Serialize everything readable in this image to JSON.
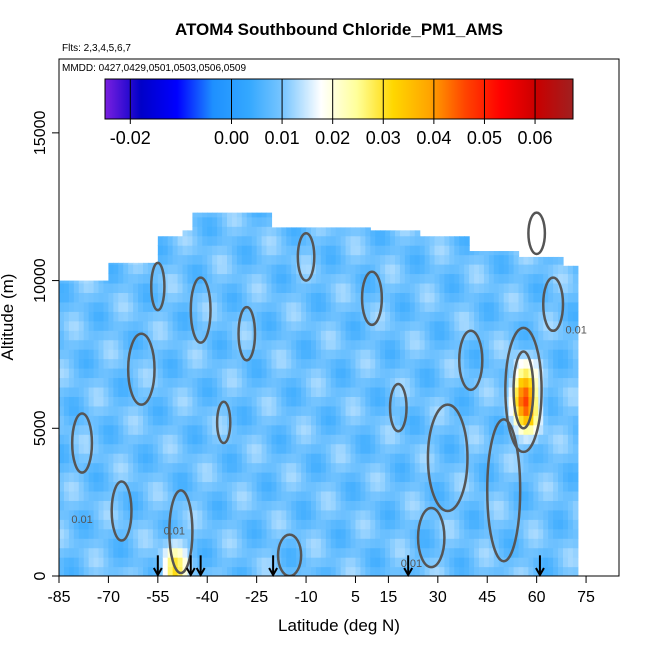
{
  "chart_data": {
    "type": "heatmap",
    "title": "ATOM4 Southbound Chloride_PM1_AMS",
    "notes": [
      "Flts: 2,3,4,5,6,7",
      "MMDD: 0427,0429,0501,0503,0506,0509"
    ],
    "xlabel": "Latitude (deg N)",
    "ylabel": "Altitude (m)",
    "xlim": [
      -85,
      85
    ],
    "ylim": [
      0,
      17500
    ],
    "x_ticks": [
      "-85",
      "-70",
      "-55",
      "-40",
      "-25",
      "-10",
      "5",
      "15",
      "30",
      "45",
      "60",
      "75"
    ],
    "x_tick_values": [
      -85,
      -70,
      -55,
      -40,
      -25,
      -10,
      5,
      15,
      30,
      45,
      60,
      75
    ],
    "y_ticks": [
      "0",
      "5000",
      "10000",
      "15000"
    ],
    "y_tick_values": [
      0,
      5000,
      10000,
      15000
    ],
    "colorbar": {
      "range": [
        -0.025,
        0.0675
      ],
      "tick_labels": [
        "-0.02",
        "0.00",
        "0.01",
        "0.02",
        "0.03",
        "0.04",
        "0.05",
        "0.06"
      ],
      "tick_values": [
        -0.02,
        0.0,
        0.01,
        0.02,
        0.03,
        0.04,
        0.05,
        0.06
      ],
      "colors": [
        "#7a1fe0",
        "#0000c8",
        "#0000ff",
        "#1e90ff",
        "#34a8ff",
        "#7ec8ff",
        "#ffffff",
        "#ffff99",
        "#ffd700",
        "#ffa500",
        "#ff4500",
        "#ff0000",
        "#c80000",
        "#a02020"
      ]
    },
    "contour_labels": [
      "0.01",
      "0.01",
      "0.01",
      "0.01"
    ],
    "sounding_markers_lat": [
      -55,
      -45,
      -42,
      -20,
      21,
      61
    ],
    "coverage_upper_altitude": [
      [
        -85,
        10000
      ],
      [
        -75,
        10000
      ],
      [
        -70,
        10600
      ],
      [
        -63,
        10600
      ],
      [
        -55,
        11500
      ],
      [
        -48,
        11700
      ],
      [
        -45,
        12300
      ],
      [
        -38,
        12300
      ],
      [
        -20,
        11800
      ],
      [
        -5,
        11800
      ],
      [
        10,
        11700
      ],
      [
        25,
        11500
      ],
      [
        40,
        11000
      ],
      [
        55,
        10800
      ],
      [
        68,
        10500
      ],
      [
        72,
        10000
      ],
      [
        72,
        7000
      ]
    ],
    "hotspots": [
      {
        "lat": 56,
        "alt": 6200,
        "value": 0.04
      },
      {
        "lat": -50,
        "alt": 150,
        "value": 0.03
      },
      {
        "lat": 58,
        "alt": 5500,
        "value": 0.025
      }
    ]
  }
}
